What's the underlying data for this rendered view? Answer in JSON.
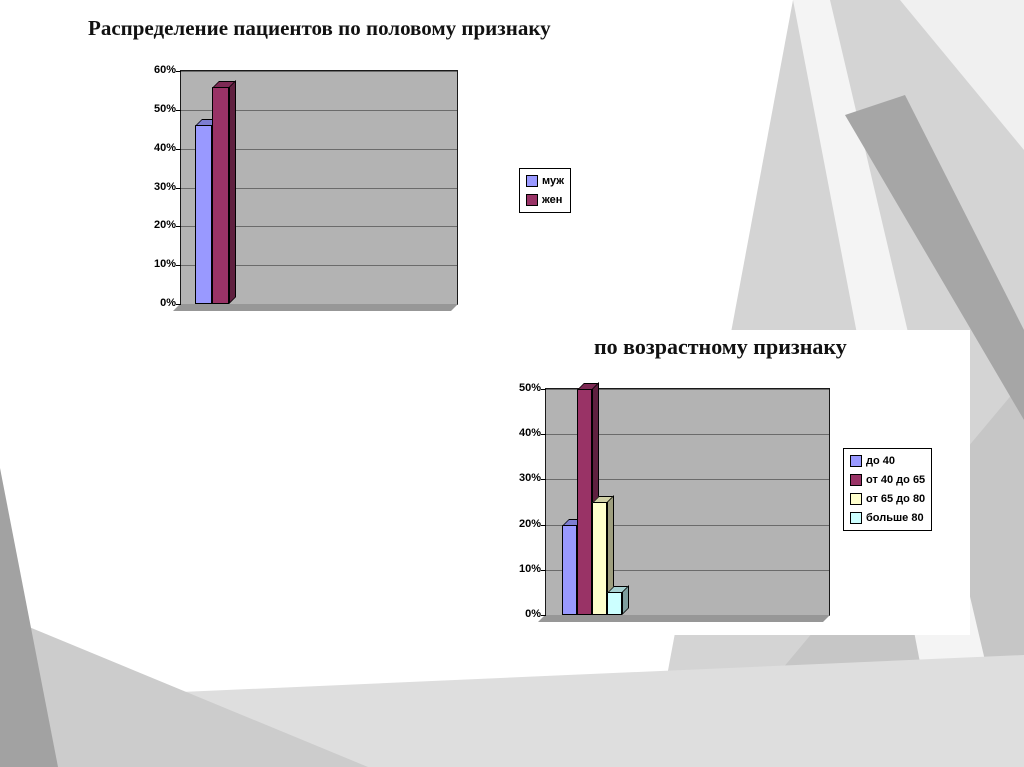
{
  "slide": {
    "accent_colors": {
      "series_blue": "#9999ff",
      "series_maroon": "#993366",
      "series_yellow": "#ffffcc",
      "series_cyan": "#ccffff",
      "plot_background": "#b3b3b3",
      "background_gray": "#d4d4d4"
    }
  },
  "chart_data": [
    {
      "type": "bar",
      "style": "3d-column",
      "title": "Распределение пациентов по половому признаку",
      "categories": [
        ""
      ],
      "series": [
        {
          "name": "муж",
          "values": [
            46
          ],
          "color": "#9999ff"
        },
        {
          "name": "жен",
          "values": [
            56
          ],
          "color": "#993366"
        }
      ],
      "xlabel": "",
      "ylabel": "",
      "ylim": [
        0,
        60
      ],
      "ytick_step": 10,
      "ytick_labels": [
        "0%",
        "10%",
        "20%",
        "30%",
        "40%",
        "50%",
        "60%"
      ],
      "grid": true,
      "legend_position": "right",
      "plot_bg": "#b3b3b3"
    },
    {
      "type": "bar",
      "style": "3d-column",
      "title": "по возрастному признаку",
      "categories": [
        ""
      ],
      "series": [
        {
          "name": "до 40",
          "values": [
            20
          ],
          "color": "#9999ff"
        },
        {
          "name": "от 40 до 65",
          "values": [
            50
          ],
          "color": "#993366"
        },
        {
          "name": "от 65 до 80",
          "values": [
            25
          ],
          "color": "#ffffcc"
        },
        {
          "name": "больше 80",
          "values": [
            5
          ],
          "color": "#ccffff"
        }
      ],
      "xlabel": "",
      "ylabel": "",
      "ylim": [
        0,
        50
      ],
      "ytick_step": 10,
      "ytick_labels": [
        "0%",
        "10%",
        "20%",
        "30%",
        "40%",
        "50%"
      ],
      "grid": true,
      "legend_position": "right",
      "plot_bg": "#b3b3b3"
    }
  ]
}
